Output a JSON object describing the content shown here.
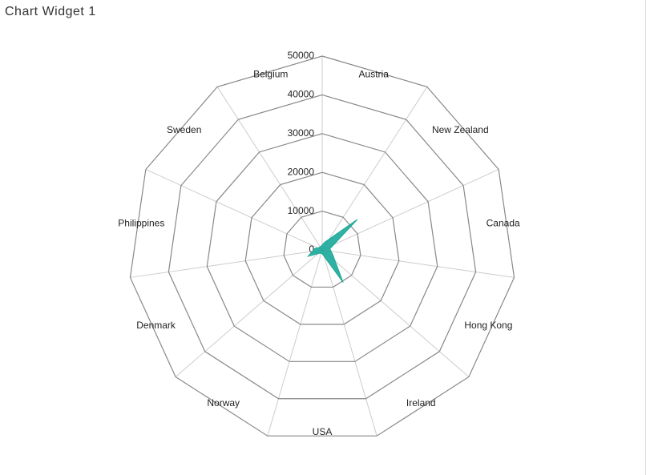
{
  "title": "Chart Widget 1",
  "chart_data": {
    "type": "radar",
    "categories": [
      "Austria",
      "New Zealand",
      "Canada",
      "Hong Kong",
      "Ireland",
      "USA",
      "Norway",
      "Denmark",
      "Philippines",
      "Sweden",
      "Belgium"
    ],
    "values": [
      2000,
      12000,
      2000,
      3000,
      10000,
      1000,
      1000,
      4000,
      2000,
      1000,
      1000
    ],
    "color": "#1aa99a",
    "ylim": [
      0,
      50000
    ],
    "yticks": [
      0,
      10000,
      20000,
      30000,
      40000,
      50000
    ],
    "grid": true
  }
}
